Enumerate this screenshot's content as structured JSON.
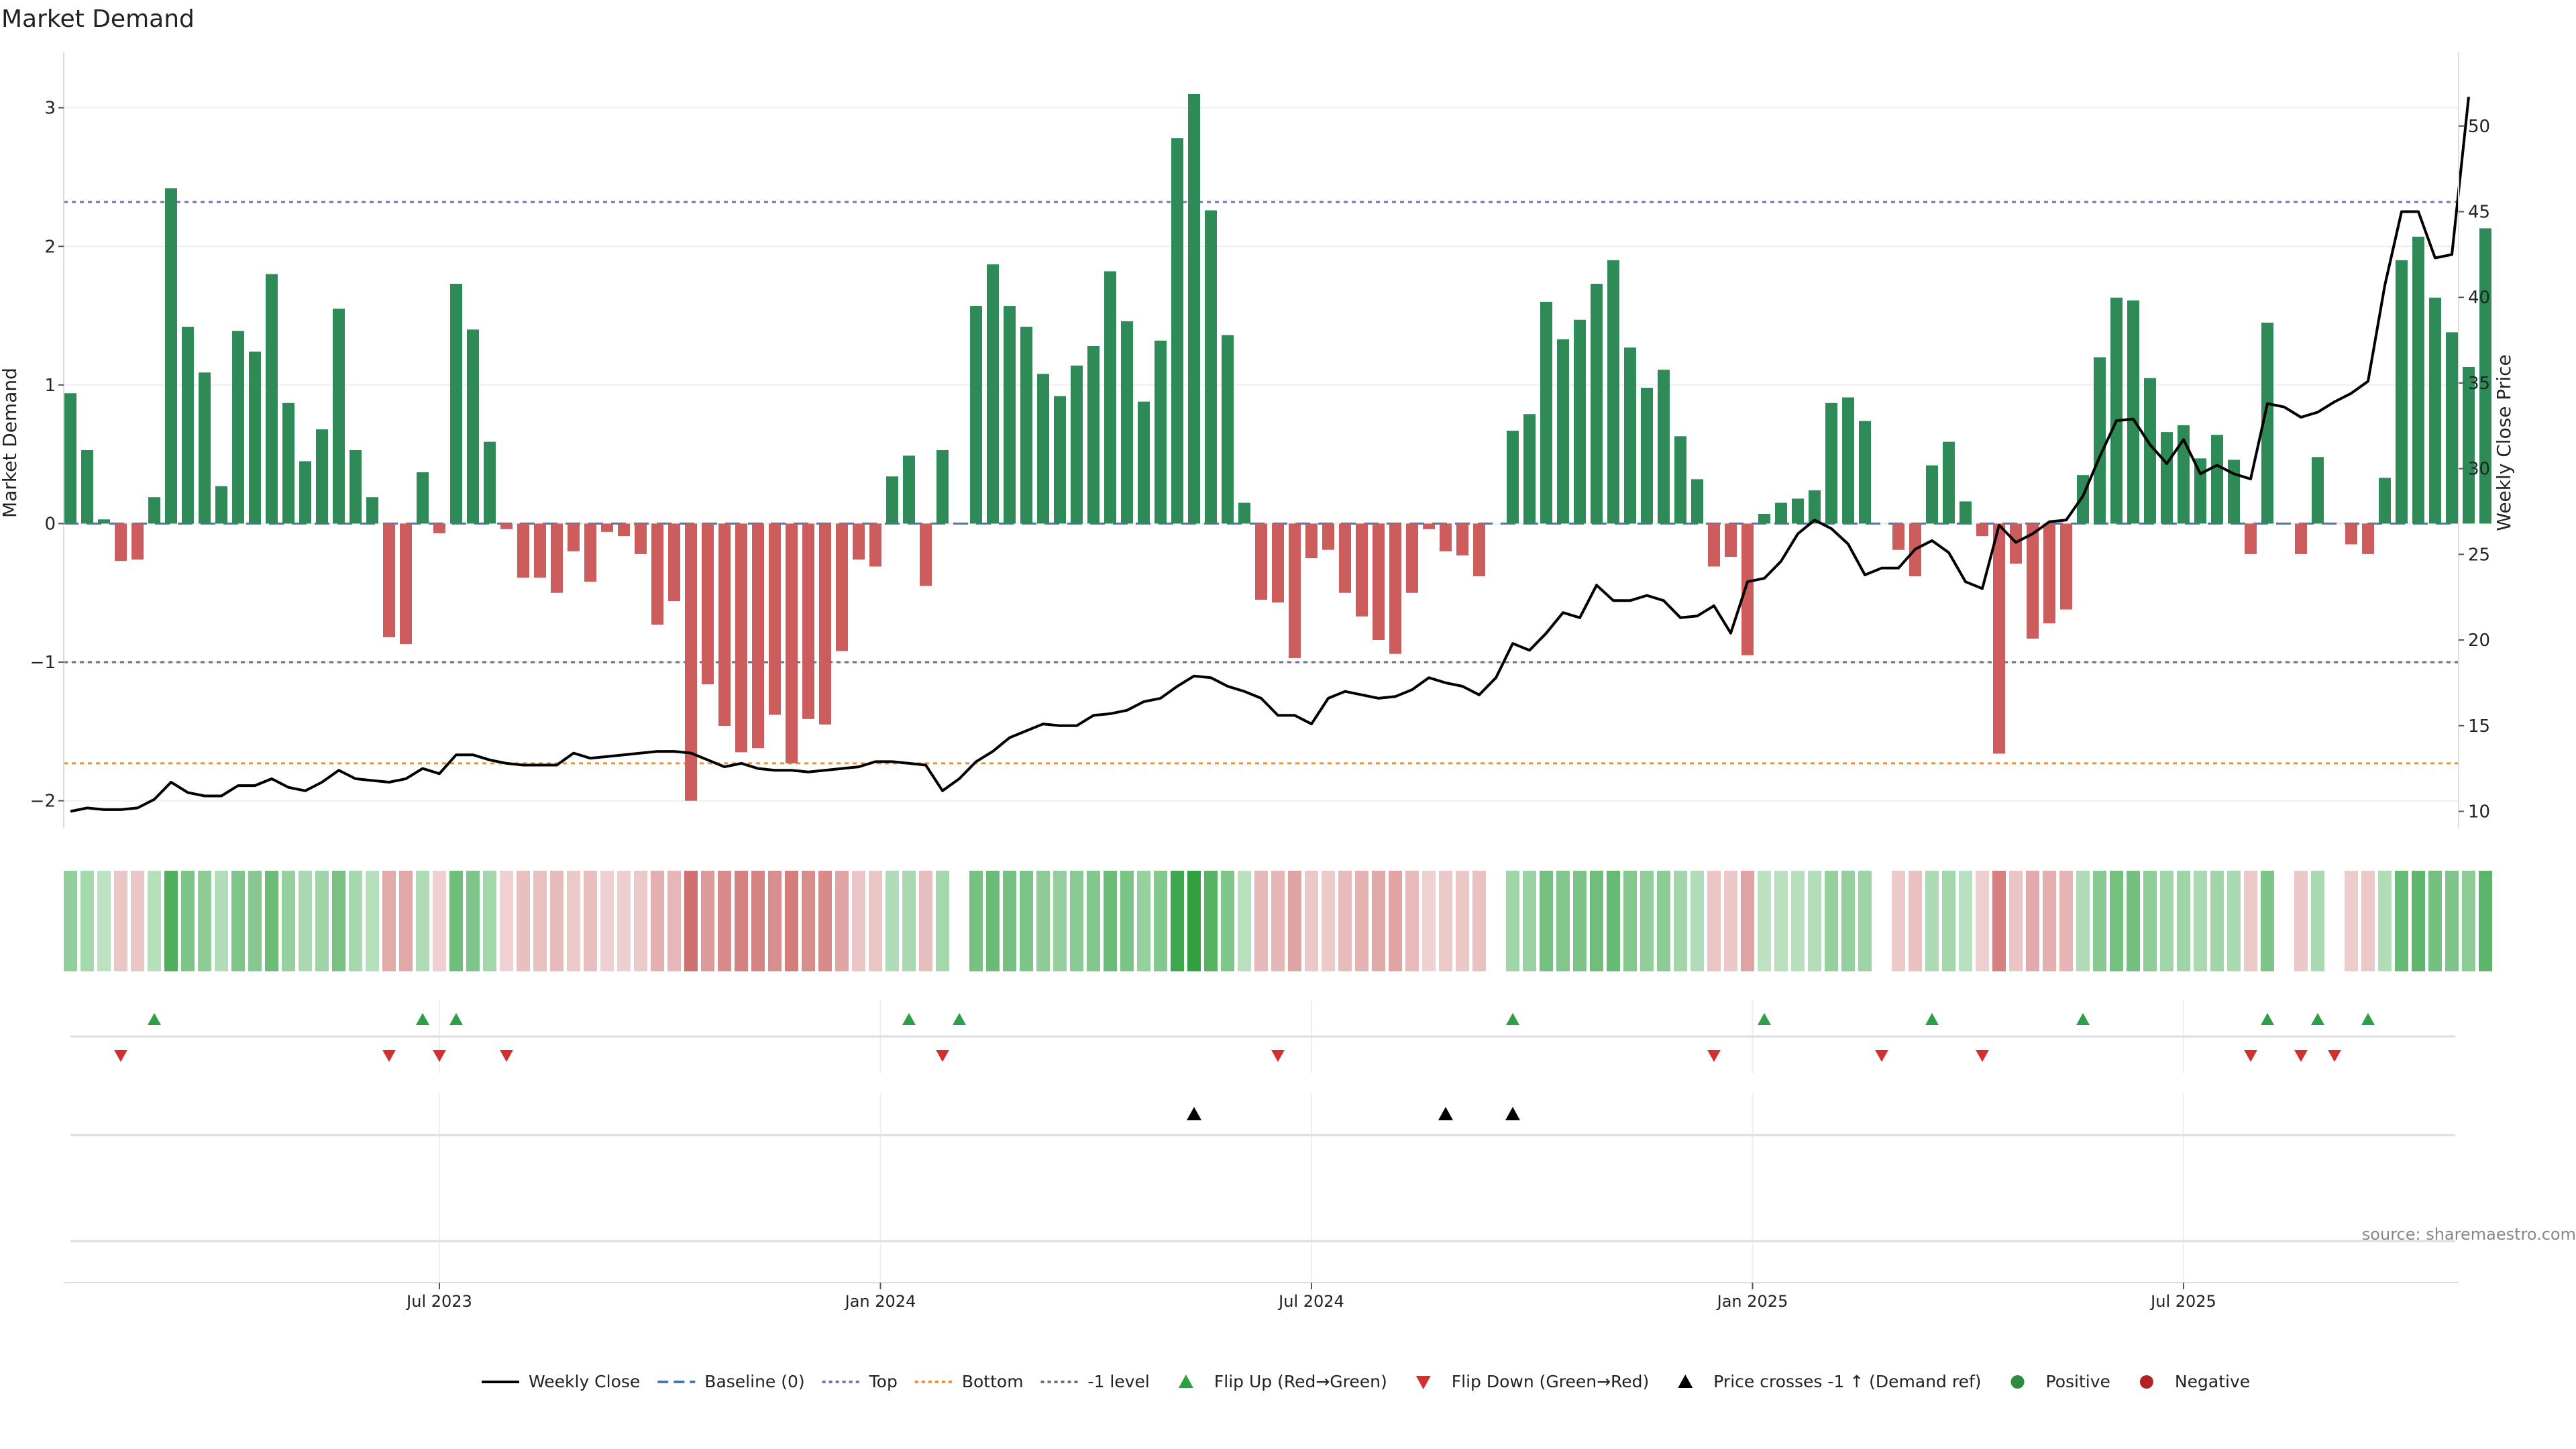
{
  "chart_data": {
    "type": "bar+line",
    "title": "Market Demand",
    "ylabel_left": "Market Demand",
    "ylabel_right": "Weekly Close Price",
    "source": "source: sharemaestro.com",
    "left_axis": {
      "ylim": [
        -2.2,
        3.4
      ],
      "ticks": [
        -2,
        -1,
        0,
        1,
        2,
        3
      ],
      "tick_labels": [
        "−2",
        "−1",
        "0",
        "1",
        "2",
        "3"
      ]
    },
    "right_axis": {
      "ylim": [
        9.0,
        54.3
      ],
      "ticks": [
        10,
        15,
        20,
        25,
        30,
        35,
        40,
        45,
        50
      ],
      "tick_labels": [
        "10",
        "15",
        "20",
        "25",
        "30",
        "35",
        "40",
        "45",
        "50"
      ]
    },
    "x_axis": {
      "tick_labels": [
        "Jul 2023",
        "Jan 2024",
        "Jul 2024",
        "Jan 2025",
        "Jul 2025"
      ],
      "tick_week_index": [
        22,
        48.3,
        74,
        100.3,
        126
      ]
    },
    "reference_lines": {
      "top": 2.32,
      "bottom": -1.73,
      "minus_one": -1.0,
      "baseline": 0
    },
    "demand": [
      0.94,
      0.53,
      0.03,
      -0.27,
      -0.26,
      0.19,
      2.42,
      1.42,
      1.09,
      0.27,
      1.39,
      1.24,
      1.8,
      0.87,
      0.45,
      0.68,
      1.55,
      0.53,
      0.19,
      -0.82,
      -0.87,
      0.37,
      -0.07,
      1.73,
      1.4,
      0.59,
      -0.04,
      -0.39,
      -0.39,
      -0.5,
      -0.2,
      -0.42,
      -0.06,
      -0.09,
      -0.22,
      -0.73,
      -0.56,
      -2.0,
      -1.16,
      -1.46,
      -1.65,
      -1.62,
      -1.38,
      -1.73,
      -1.41,
      -1.45,
      -0.92,
      -0.26,
      -0.31,
      0.34,
      0.49,
      -0.45,
      0.53,
      null,
      1.57,
      1.87,
      1.57,
      1.42,
      1.08,
      0.92,
      1.14,
      1.28,
      1.82,
      1.46,
      0.88,
      1.32,
      2.78,
      3.1,
      2.26,
      1.36,
      0.15,
      -0.55,
      -0.57,
      -0.97,
      -0.25,
      -0.19,
      -0.5,
      -0.67,
      -0.84,
      -0.94,
      -0.5,
      -0.04,
      -0.2,
      -0.23,
      -0.38,
      null,
      0.67,
      0.79,
      1.6,
      1.33,
      1.47,
      1.73,
      1.9,
      1.27,
      0.98,
      1.11,
      0.63,
      0.32,
      -0.31,
      -0.24,
      -0.95,
      0.07,
      0.15,
      0.18,
      0.24,
      0.87,
      0.91,
      0.74,
      null,
      -0.19,
      -0.38,
      0.42,
      0.59,
      0.16,
      -0.09,
      -1.66,
      -0.29,
      -0.83,
      -0.72,
      -0.62,
      0.35,
      1.2,
      1.63,
      1.61,
      1.05,
      0.66,
      0.71,
      0.47,
      0.64,
      0.46,
      -0.22,
      1.45,
      null,
      -0.22,
      0.48,
      null,
      -0.15,
      -0.22,
      0.33,
      1.9,
      2.07,
      1.63,
      1.38,
      1.13,
      2.13
    ],
    "close": [
      10.0,
      10.2,
      10.1,
      10.1,
      10.2,
      10.7,
      11.7,
      11.1,
      10.9,
      10.9,
      11.5,
      11.5,
      11.9,
      11.4,
      11.2,
      11.7,
      12.4,
      11.9,
      11.8,
      11.7,
      11.9,
      12.5,
      12.2,
      13.3,
      13.3,
      13.0,
      12.8,
      12.7,
      12.7,
      12.7,
      13.4,
      13.1,
      13.2,
      13.3,
      13.4,
      13.5,
      13.5,
      13.4,
      13.0,
      12.6,
      12.8,
      12.5,
      12.4,
      12.4,
      12.3,
      12.4,
      12.5,
      12.6,
      12.9,
      12.9,
      12.8,
      12.7,
      11.2,
      11.9,
      12.9,
      13.5,
      14.3,
      14.7,
      15.1,
      15.0,
      15.0,
      15.6,
      15.7,
      15.9,
      16.4,
      16.6,
      17.3,
      17.9,
      17.8,
      17.3,
      17.0,
      16.6,
      15.6,
      15.6,
      15.1,
      16.6,
      17.0,
      16.8,
      16.6,
      16.7,
      17.1,
      17.8,
      17.5,
      17.3,
      16.8,
      17.8,
      19.8,
      19.4,
      20.4,
      21.6,
      21.3,
      23.2,
      22.3,
      22.3,
      22.6,
      22.3,
      21.3,
      21.4,
      22.0,
      20.4,
      23.4,
      23.6,
      24.6,
      26.2,
      27.0,
      26.5,
      25.6,
      23.8,
      24.2,
      24.2,
      25.3,
      25.8,
      25.1,
      23.4,
      23.0,
      26.7,
      25.7,
      26.2,
      26.9,
      27.0,
      28.4,
      30.7,
      32.8,
      32.9,
      31.4,
      30.3,
      31.7,
      29.7,
      30.2,
      29.7,
      29.4,
      33.8,
      33.6,
      33.0,
      33.3,
      33.9,
      34.4,
      35.1,
      40.7,
      45.0,
      45.0,
      42.3,
      42.5,
      51.7
    ],
    "flip_up_week_index": [
      5,
      21,
      23,
      50,
      53,
      86,
      101,
      111,
      120,
      131,
      134,
      137
    ],
    "flip_down_week_index": [
      3,
      19,
      22,
      26,
      52,
      72,
      98,
      108,
      114,
      130,
      133,
      135
    ],
    "price_cross_week_index": [
      67,
      82,
      86
    ],
    "legend": [
      {
        "label": "Weekly Close",
        "icon": "solid-line",
        "color": "#000000"
      },
      {
        "label": "Baseline (0)",
        "icon": "dashed-line",
        "color": "#4a77b4"
      },
      {
        "label": "Top",
        "icon": "dotted-line",
        "color": "#7b6fb4"
      },
      {
        "label": "Bottom",
        "icon": "dotted-line",
        "color": "#e8923a"
      },
      {
        "label": "-1 level",
        "icon": "dotted-line",
        "color": "#6b6b8a"
      },
      {
        "label": "Flip Up (Red→Green)",
        "icon": "triangle-up",
        "color": "#2e9e48"
      },
      {
        "label": "Flip Down (Green→Red)",
        "icon": "triangle-down",
        "color": "#d03030"
      },
      {
        "label": "Price crosses -1 ↑ (Demand ref)",
        "icon": "triangle-up",
        "color": "#000000"
      },
      {
        "label": "Positive",
        "icon": "circle",
        "color": "#2e8b3e"
      },
      {
        "label": "Negative",
        "icon": "circle",
        "color": "#b22222"
      }
    ],
    "colors": {
      "positive": "#2e8b57",
      "negative": "#cd5c5c",
      "close": "#000000",
      "flip_up": "#2e9e48",
      "flip_down": "#d03030",
      "cross": "#000000"
    }
  }
}
